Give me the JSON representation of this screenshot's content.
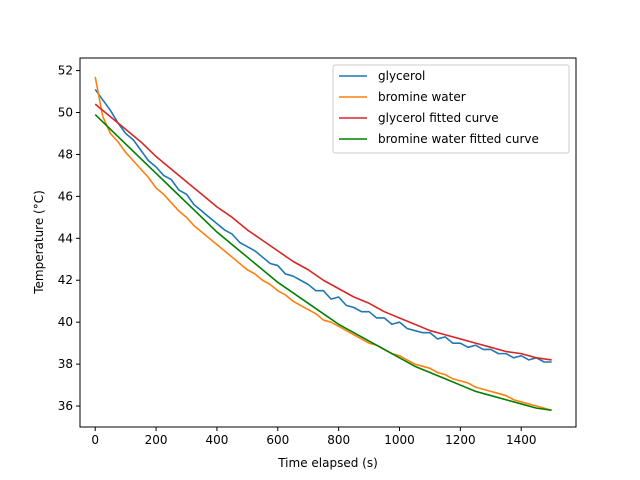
{
  "chart_data": {
    "type": "line",
    "xlabel": "Time elapsed (s)",
    "ylabel": "Temperature (°C)",
    "xlim": [
      -50,
      1580
    ],
    "ylim": [
      35.0,
      52.6
    ],
    "xticks": [
      0,
      200,
      400,
      600,
      800,
      1000,
      1200,
      1400
    ],
    "yticks": [
      36,
      38,
      40,
      42,
      44,
      46,
      48,
      50,
      52
    ],
    "grid": false,
    "legend_position": "top-right",
    "series": [
      {
        "name": "glycerol",
        "color": "#1f77b4",
        "x": [
          0,
          25,
          50,
          75,
          100,
          125,
          150,
          175,
          200,
          225,
          250,
          275,
          300,
          325,
          350,
          375,
          400,
          425,
          450,
          475,
          500,
          525,
          550,
          575,
          600,
          625,
          650,
          675,
          700,
          725,
          750,
          775,
          800,
          825,
          850,
          875,
          900,
          925,
          950,
          975,
          1000,
          1025,
          1050,
          1075,
          1100,
          1125,
          1150,
          1175,
          1200,
          1225,
          1250,
          1275,
          1300,
          1325,
          1350,
          1375,
          1400,
          1425,
          1450,
          1475,
          1500
        ],
        "y": [
          51.1,
          50.6,
          50.1,
          49.5,
          49.0,
          48.7,
          48.2,
          47.7,
          47.4,
          47.0,
          46.8,
          46.3,
          46.1,
          45.6,
          45.3,
          45.0,
          44.7,
          44.4,
          44.2,
          43.8,
          43.6,
          43.4,
          43.1,
          42.8,
          42.7,
          42.3,
          42.2,
          42.0,
          41.8,
          41.5,
          41.5,
          41.1,
          41.2,
          40.8,
          40.7,
          40.5,
          40.5,
          40.2,
          40.2,
          39.9,
          40.0,
          39.7,
          39.6,
          39.5,
          39.5,
          39.2,
          39.3,
          39.0,
          39.0,
          38.8,
          38.9,
          38.7,
          38.7,
          38.5,
          38.5,
          38.3,
          38.4,
          38.2,
          38.3,
          38.1,
          38.1
        ]
      },
      {
        "name": "bromine water",
        "color": "#ff7f0e",
        "x": [
          0,
          25,
          50,
          75,
          100,
          125,
          150,
          175,
          200,
          225,
          250,
          275,
          300,
          325,
          350,
          375,
          400,
          425,
          450,
          475,
          500,
          525,
          550,
          575,
          600,
          625,
          650,
          675,
          700,
          725,
          750,
          775,
          800,
          825,
          850,
          875,
          900,
          925,
          950,
          975,
          1000,
          1025,
          1050,
          1075,
          1100,
          1125,
          1150,
          1175,
          1200,
          1225,
          1250,
          1275,
          1300,
          1325,
          1350,
          1375,
          1400,
          1425,
          1450,
          1475,
          1500
        ],
        "y": [
          51.7,
          49.8,
          49.0,
          48.6,
          48.1,
          47.7,
          47.3,
          46.9,
          46.4,
          46.1,
          45.7,
          45.3,
          45.0,
          44.6,
          44.3,
          44.0,
          43.7,
          43.4,
          43.1,
          42.8,
          42.5,
          42.3,
          42.0,
          41.8,
          41.5,
          41.3,
          41.0,
          40.8,
          40.6,
          40.4,
          40.1,
          40.0,
          39.8,
          39.6,
          39.4,
          39.2,
          39.0,
          38.9,
          38.7,
          38.5,
          38.4,
          38.2,
          38.0,
          37.9,
          37.8,
          37.6,
          37.5,
          37.3,
          37.2,
          37.1,
          36.9,
          36.8,
          36.7,
          36.6,
          36.5,
          36.3,
          36.2,
          36.1,
          36.0,
          35.9,
          35.8
        ]
      },
      {
        "name": "glycerol fitted curve",
        "color": "#d62728",
        "x": [
          0,
          50,
          100,
          150,
          200,
          250,
          300,
          350,
          400,
          450,
          500,
          550,
          600,
          650,
          700,
          750,
          800,
          850,
          900,
          950,
          1000,
          1050,
          1100,
          1150,
          1200,
          1250,
          1300,
          1350,
          1400,
          1450,
          1500
        ],
        "y": [
          50.4,
          49.8,
          49.2,
          48.6,
          47.9,
          47.3,
          46.7,
          46.1,
          45.5,
          45.0,
          44.4,
          43.9,
          43.4,
          42.9,
          42.5,
          42.0,
          41.6,
          41.2,
          40.9,
          40.5,
          40.2,
          39.9,
          39.6,
          39.4,
          39.2,
          39.0,
          38.8,
          38.6,
          38.5,
          38.3,
          38.2
        ]
      },
      {
        "name": "bromine water fitted curve",
        "color": "#008000",
        "x": [
          0,
          50,
          100,
          150,
          200,
          250,
          300,
          350,
          400,
          450,
          500,
          550,
          600,
          650,
          700,
          750,
          800,
          850,
          900,
          950,
          1000,
          1050,
          1100,
          1150,
          1200,
          1250,
          1300,
          1350,
          1400,
          1450,
          1500
        ],
        "y": [
          49.9,
          49.2,
          48.5,
          47.8,
          47.1,
          46.4,
          45.7,
          45.0,
          44.3,
          43.7,
          43.1,
          42.5,
          41.9,
          41.4,
          40.9,
          40.4,
          39.9,
          39.5,
          39.1,
          38.7,
          38.3,
          37.9,
          37.6,
          37.3,
          37.0,
          36.7,
          36.5,
          36.3,
          36.1,
          35.9,
          35.8
        ]
      }
    ]
  }
}
